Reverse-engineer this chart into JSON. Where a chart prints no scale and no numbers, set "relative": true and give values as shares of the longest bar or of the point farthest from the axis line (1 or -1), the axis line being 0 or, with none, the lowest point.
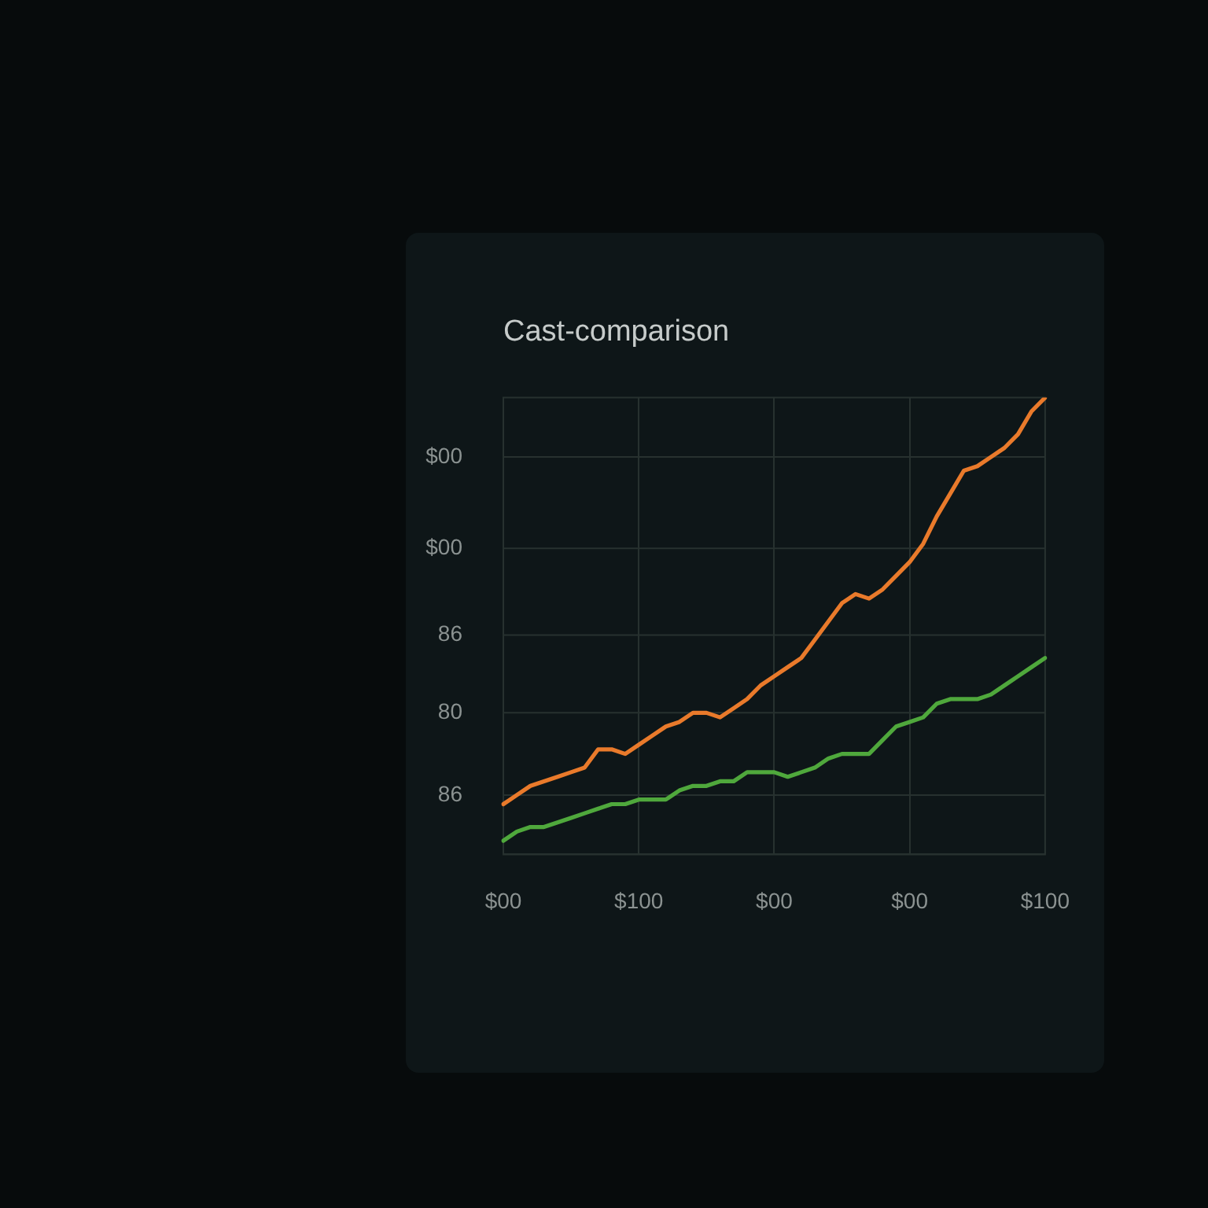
{
  "chart_data": {
    "type": "line",
    "title": "Cast-comparison",
    "categories": [
      "$00",
      null,
      null,
      null,
      null,
      null,
      null,
      null,
      null,
      null,
      "$100",
      null,
      null,
      null,
      null,
      null,
      null,
      null,
      null,
      null,
      "$00",
      null,
      null,
      null,
      null,
      null,
      null,
      null,
      null,
      null,
      "$00",
      null,
      null,
      null,
      null,
      null,
      null,
      null,
      null,
      null,
      "$100"
    ],
    "series": [
      {
        "color": "#e97a2b",
        "values": [
          0.11,
          0.13,
          0.15,
          0.16,
          0.17,
          0.18,
          0.19,
          0.23,
          0.23,
          0.22,
          0.24,
          0.26,
          0.28,
          0.29,
          0.31,
          0.31,
          0.3,
          0.32,
          0.34,
          0.37,
          0.39,
          0.41,
          0.43,
          0.47,
          0.51,
          0.55,
          0.57,
          0.56,
          0.58,
          0.61,
          0.64,
          0.68,
          0.74,
          0.79,
          0.84,
          0.85,
          0.87,
          0.89,
          0.92,
          0.97,
          1.0
        ]
      },
      {
        "color": "#4fa83c",
        "values": [
          0.03,
          0.05,
          0.06,
          0.06,
          0.07,
          0.08,
          0.09,
          0.1,
          0.11,
          0.11,
          0.12,
          0.12,
          0.12,
          0.14,
          0.15,
          0.15,
          0.16,
          0.16,
          0.18,
          0.18,
          0.18,
          0.17,
          0.18,
          0.19,
          0.21,
          0.22,
          0.22,
          0.22,
          0.25,
          0.28,
          0.29,
          0.3,
          0.33,
          0.34,
          0.34,
          0.34,
          0.35,
          0.37,
          0.39,
          0.41,
          0.43
        ]
      }
    ],
    "relative": true,
    "ref_lines": [
      {
        "axis": "y",
        "value": 0.13
      },
      {
        "axis": "y",
        "value": 0.31
      },
      {
        "axis": "y",
        "value": 0.48
      },
      {
        "axis": "y",
        "value": 0.67
      },
      {
        "axis": "y",
        "value": 0.87
      }
    ],
    "annotations": [
      "86",
      "80",
      "86",
      "$00",
      "$00"
    ],
    "grid": "x",
    "marker": "none"
  }
}
